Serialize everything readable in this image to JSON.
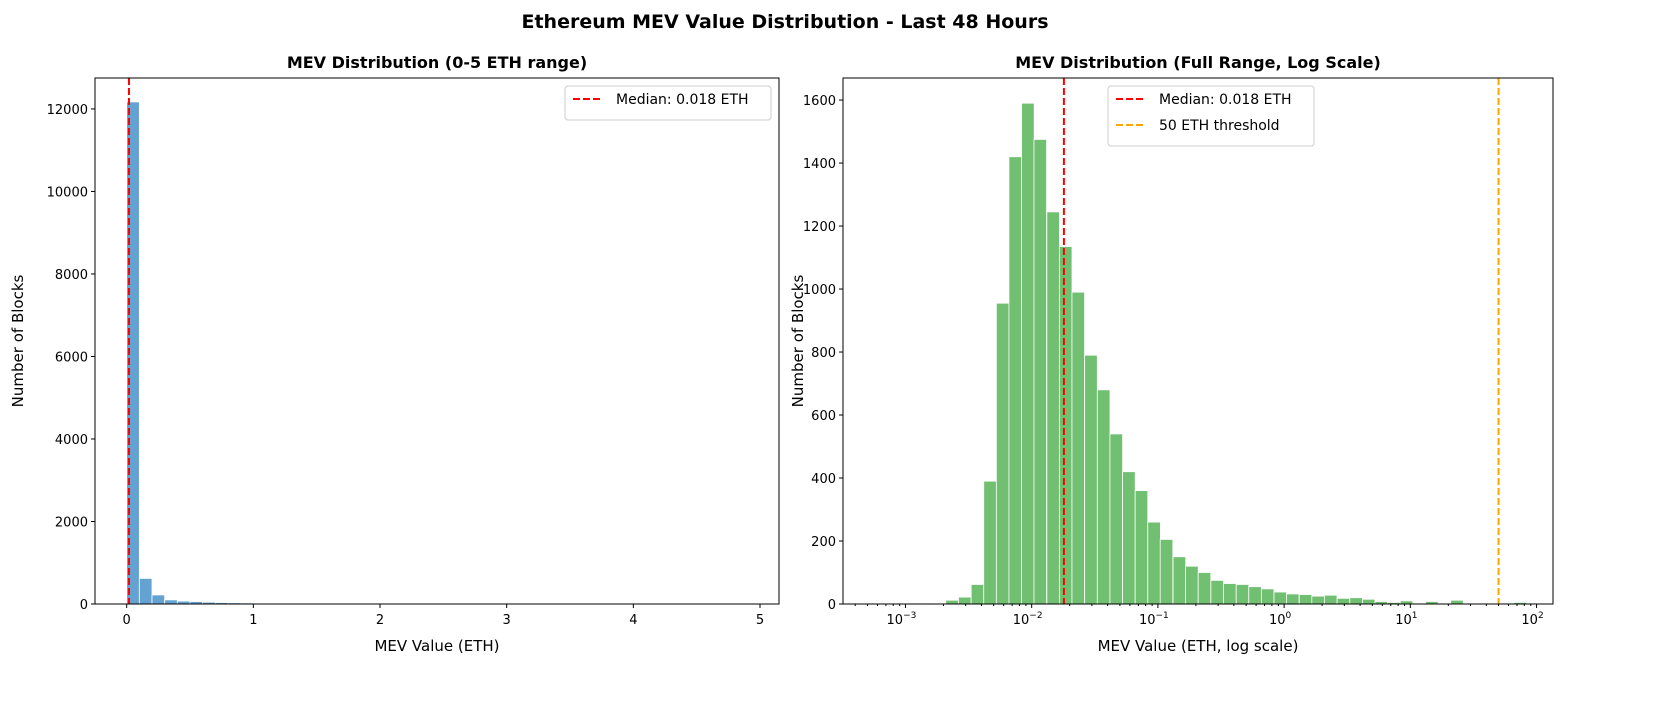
{
  "suptitle": "Ethereum MEV Value Distribution - Last 48 Hours",
  "chart_data": [
    {
      "type": "bar",
      "title": "MEV Distribution (0-5 ETH range)",
      "xlabel": "MEV Value (ETH)",
      "ylabel": "Number of Blocks",
      "xlim": [
        -0.25,
        5.15
      ],
      "ylim": [
        0,
        12750
      ],
      "xticks": [
        0,
        1,
        2,
        3,
        4,
        5
      ],
      "yticks": [
        0,
        2000,
        4000,
        6000,
        8000,
        10000,
        12000
      ],
      "bin_width": 0.1,
      "bin_starts": [
        0,
        0.1,
        0.2,
        0.3,
        0.4,
        0.5,
        0.6,
        0.7,
        0.8,
        0.9,
        1.0,
        1.1,
        1.2,
        1.3,
        1.4,
        1.5,
        1.6,
        1.7,
        1.8,
        1.9,
        2.0,
        2.1,
        2.2,
        2.3,
        2.4,
        2.5,
        2.6,
        2.7,
        2.8,
        2.9,
        3.0,
        3.1,
        3.2,
        3.3,
        3.4,
        3.5,
        3.6,
        3.7,
        3.8,
        3.9,
        4.0,
        4.1,
        4.2,
        4.3,
        4.4,
        4.5,
        4.6,
        4.7,
        4.8,
        4.9
      ],
      "values": [
        12170,
        620,
        220,
        100,
        70,
        60,
        45,
        35,
        30,
        25,
        15,
        12,
        10,
        9,
        8,
        7,
        6,
        6,
        5,
        5,
        4,
        4,
        4,
        3,
        3,
        3,
        3,
        3,
        10,
        3,
        12,
        5,
        4,
        3,
        3,
        3,
        3,
        2,
        2,
        2,
        10,
        3,
        3,
        2,
        2,
        8,
        2,
        2,
        2,
        5
      ],
      "bar_color": "#5b9ecf",
      "lines": [
        {
          "x": 0.018,
          "label": "Median: 0.018 ETH",
          "color": "#ff0000",
          "style": "dashed"
        }
      ],
      "legend": "top-right"
    },
    {
      "type": "bar",
      "title": "MEV Distribution (Full Range, Log Scale)",
      "xlabel": "MEV Value (ETH, log scale)",
      "ylabel": "Number of Blocks",
      "xscale": "log",
      "xlim": [
        0.00032,
        135
      ],
      "ylim": [
        0,
        1670
      ],
      "xticks": [
        0.001,
        0.01,
        0.1,
        1,
        10,
        100
      ],
      "xtick_labels": [
        [
          "10",
          "−3"
        ],
        [
          "10",
          "−2"
        ],
        [
          "10",
          "−1"
        ],
        [
          "10",
          "0"
        ],
        [
          "10",
          "1"
        ],
        [
          "10",
          "2"
        ]
      ],
      "yticks": [
        0,
        200,
        400,
        600,
        800,
        1000,
        1200,
        1400,
        1600
      ],
      "bin_centers": [
        0.00117,
        0.00148,
        0.00186,
        0.00234,
        0.00295,
        0.00372,
        0.00468,
        0.00589,
        0.00741,
        0.00933,
        0.0117,
        0.0148,
        0.0186,
        0.0234,
        0.0295,
        0.0372,
        0.0468,
        0.0589,
        0.0741,
        0.0933,
        0.117,
        0.148,
        0.186,
        0.234,
        0.295,
        0.372,
        0.468,
        0.589,
        0.741,
        0.933,
        1.17,
        1.48,
        1.86,
        2.34,
        2.95,
        3.72,
        4.68,
        5.89,
        7.41,
        9.33,
        11.7,
        14.8,
        18.6,
        23.4,
        29.5,
        37.2,
        46.8,
        58.9,
        74.1
      ],
      "values": [
        3,
        3,
        2,
        12,
        22,
        62,
        390,
        955,
        1420,
        1590,
        1475,
        1245,
        1135,
        990,
        790,
        680,
        540,
        420,
        360,
        260,
        205,
        150,
        120,
        100,
        75,
        65,
        62,
        55,
        48,
        38,
        32,
        30,
        25,
        28,
        18,
        20,
        15,
        8,
        5,
        10,
        3,
        8,
        3,
        12,
        2,
        0,
        0,
        3,
        5
      ],
      "bar_color": "#6abd6a",
      "lines": [
        {
          "x": 0.018,
          "label": "Median: 0.018 ETH",
          "color": "#ff0000",
          "style": "dashed"
        },
        {
          "x": 50,
          "label": "50 ETH threshold",
          "color": "#ffa500",
          "style": "dashed"
        }
      ],
      "legend": "top-center"
    }
  ]
}
